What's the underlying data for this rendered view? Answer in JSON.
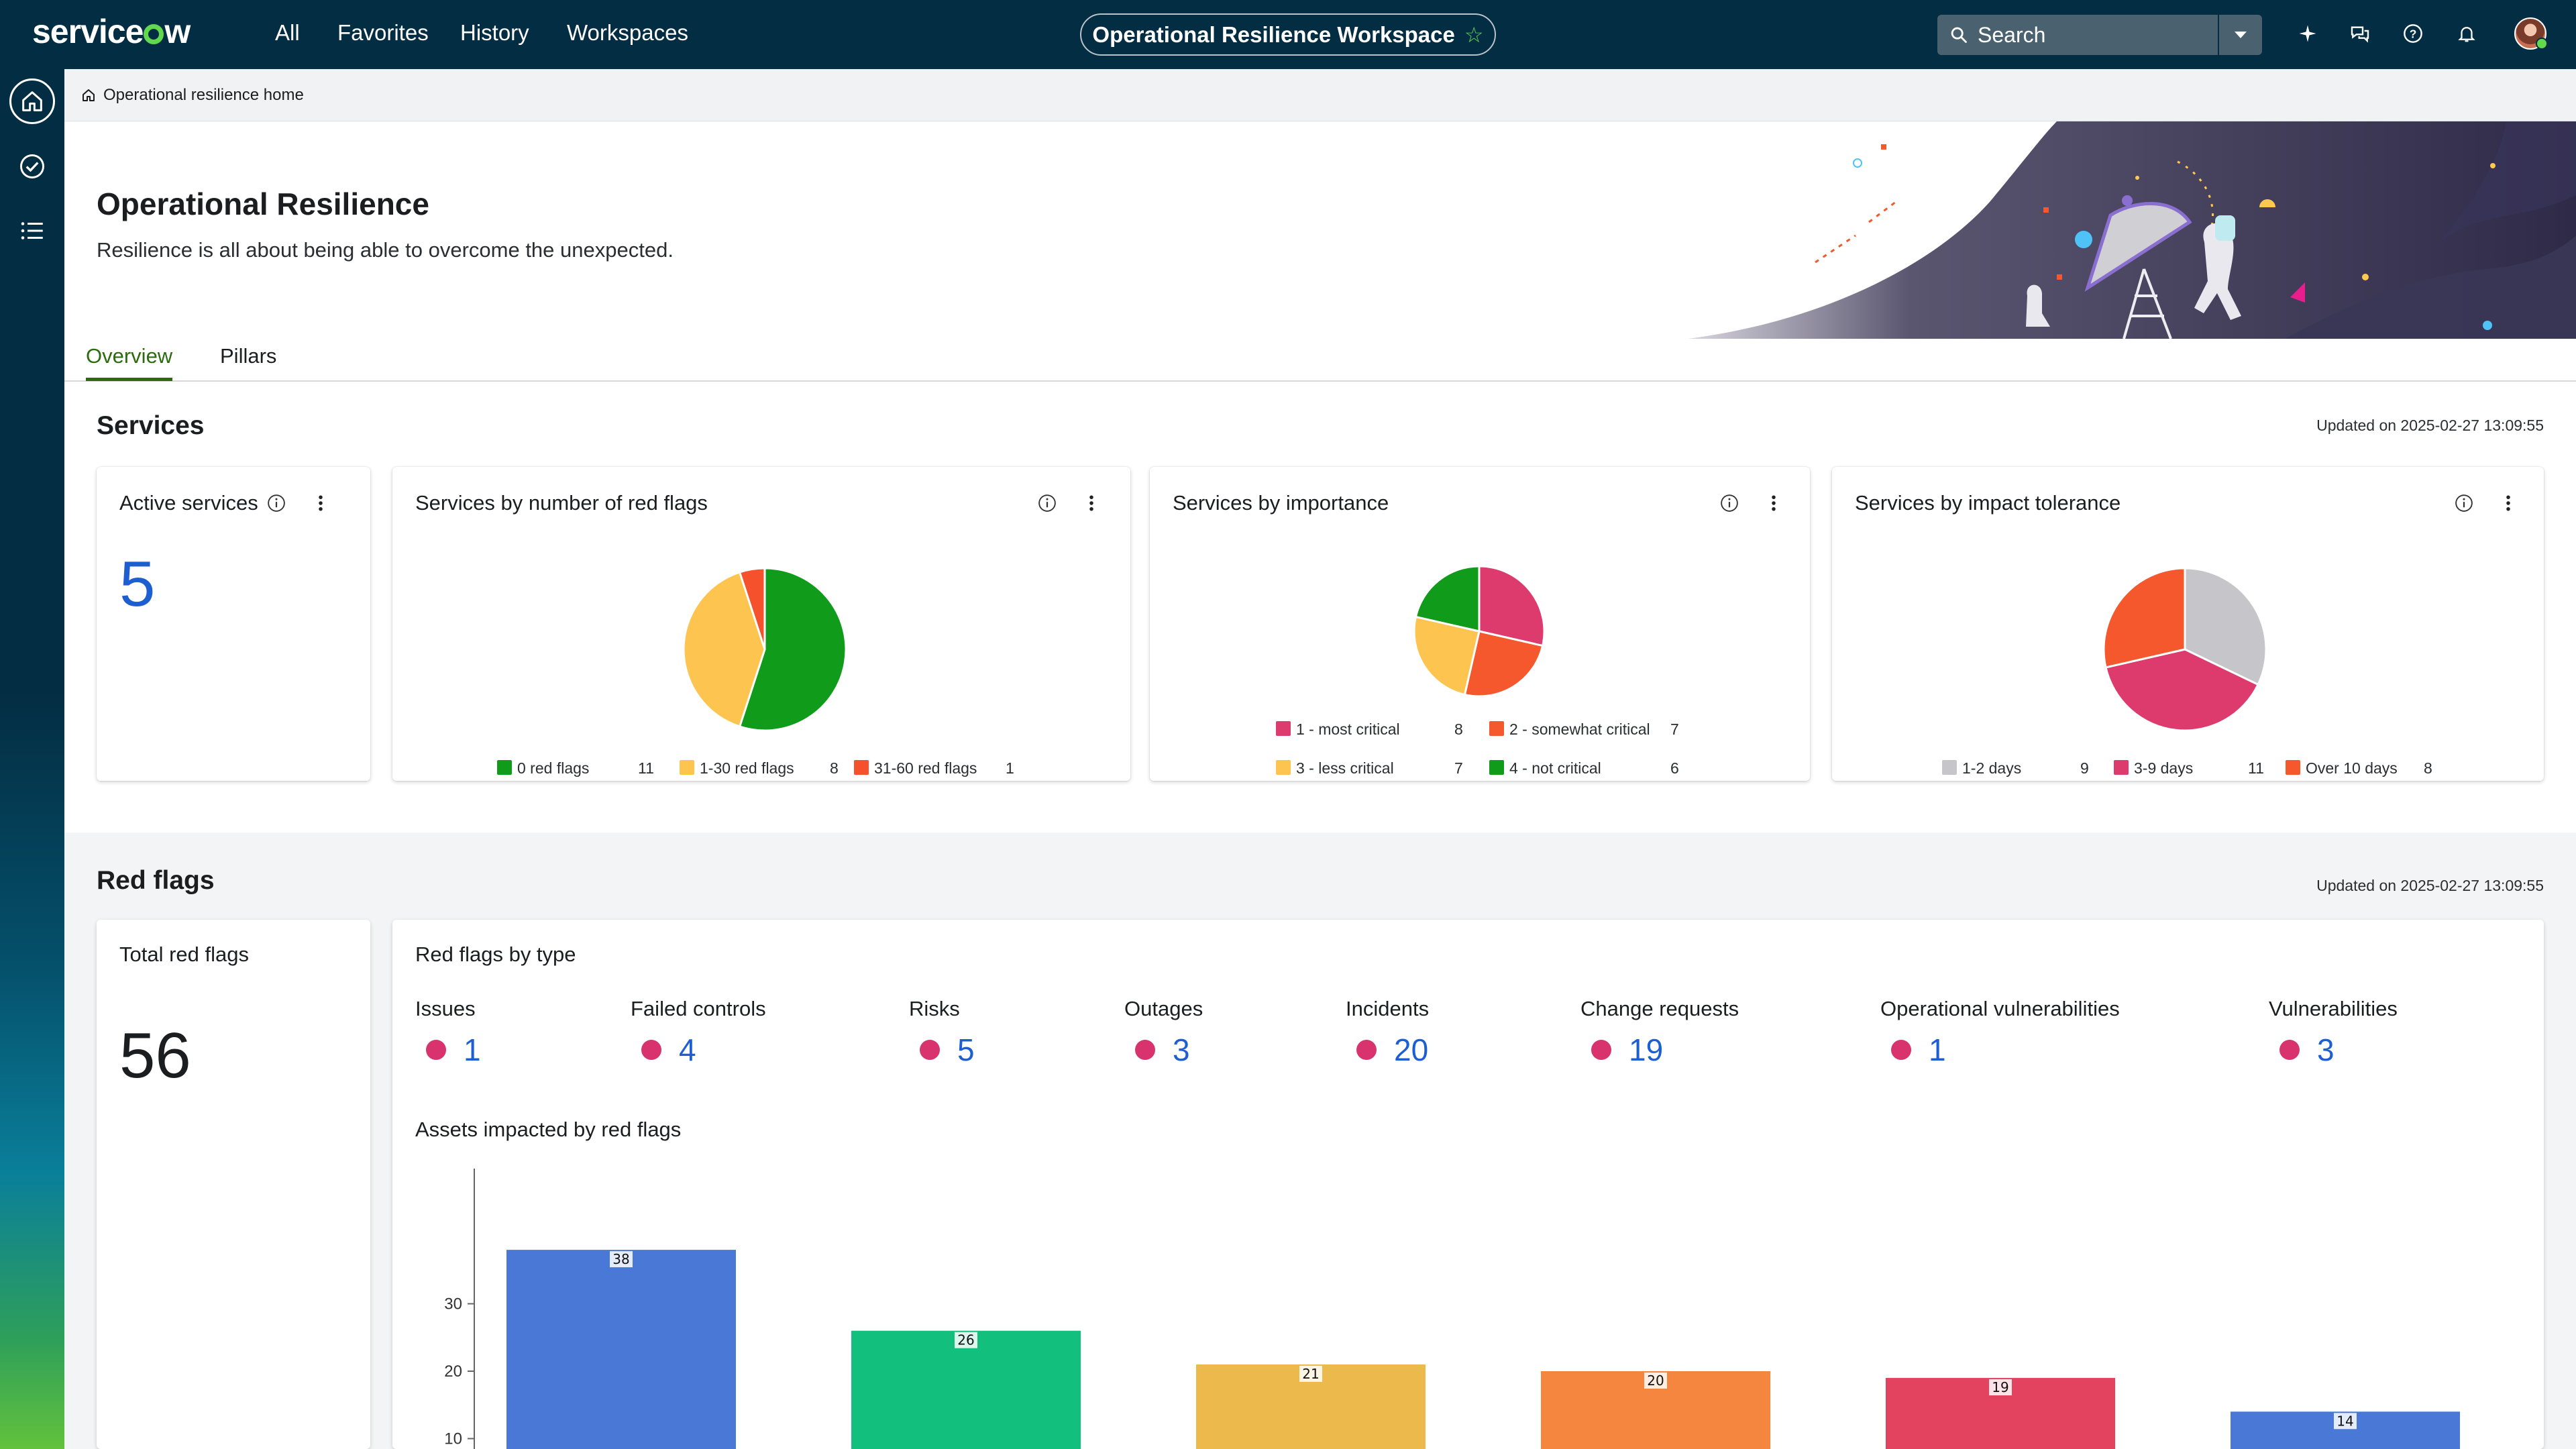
{
  "topbar": {
    "brand": "servicenow",
    "nav": [
      "All",
      "Favorites",
      "History",
      "Workspaces"
    ],
    "workspace_title": "Operational Resilience Workspace",
    "search_label": "Search"
  },
  "breadcrumb": {
    "label": "Operational resilience home"
  },
  "hero": {
    "title": "Operational Resilience",
    "subtitle": "Resilience is all about being able to overcome the unexpected."
  },
  "tabs": [
    {
      "label": "Overview",
      "active": true
    },
    {
      "label": "Pillars",
      "active": false
    }
  ],
  "services": {
    "title": "Services",
    "updated": "Updated on 2025-02-27 13:09:55",
    "active_services": {
      "title": "Active services",
      "value": "5"
    },
    "red_flags_card": {
      "title": "Services by number of red flags"
    },
    "importance_card": {
      "title": "Services by importance"
    },
    "impact_card": {
      "title": "Services by impact tolerance"
    }
  },
  "red_flags": {
    "title": "Red flags",
    "updated": "Updated on 2025-02-27 13:09:55",
    "total": {
      "title": "Total red flags",
      "value": "56"
    },
    "by_type_title": "Red flags by type",
    "types": [
      {
        "name": "Issues",
        "count": "1"
      },
      {
        "name": "Failed controls",
        "count": "4"
      },
      {
        "name": "Risks",
        "count": "5"
      },
      {
        "name": "Outages",
        "count": "3"
      },
      {
        "name": "Incidents",
        "count": "20"
      },
      {
        "name": "Change requests",
        "count": "19"
      },
      {
        "name": "Operational vulnerabilities",
        "count": "1"
      },
      {
        "name": "Vulnerabilities",
        "count": "3"
      }
    ],
    "assets_title": "Assets impacted by red flags"
  },
  "colors": {
    "accent_green": "#62d84e",
    "topbar": "#032d42",
    "link_blue": "#1d5fd0",
    "flag_dot": "#d8336d"
  },
  "chart_data": [
    {
      "type": "pie",
      "title": "Services by number of red flags",
      "categories": [
        "0 red flags",
        "1-30 red flags",
        "31-60 red flags"
      ],
      "values": [
        11,
        8,
        1
      ],
      "colors": [
        "#109b1b",
        "#fdc54f",
        "#f4512c"
      ]
    },
    {
      "type": "pie",
      "title": "Services by importance",
      "categories": [
        "1 - most critical",
        "2 - somewhat critical",
        "3 - less critical",
        "4 - not critical"
      ],
      "values": [
        8,
        7,
        7,
        6
      ],
      "colors": [
        "#dd3a6d",
        "#f4582c",
        "#fdc54f",
        "#109b1b"
      ]
    },
    {
      "type": "pie",
      "title": "Services by impact tolerance",
      "categories": [
        "1-2 days",
        "3-9 days",
        "Over 10 days"
      ],
      "values": [
        9,
        11,
        8
      ],
      "colors": [
        "#c5c5ca",
        "#dd3a6d",
        "#f4582c"
      ]
    },
    {
      "type": "bar",
      "title": "Assets impacted by red flags",
      "values": [
        38,
        26,
        21,
        20,
        19,
        14
      ],
      "colors": [
        "#4a78d6",
        "#13bf7d",
        "#ecb94c",
        "#f5863f",
        "#e4435f",
        "#4a78d6"
      ],
      "yticks": [
        10,
        20,
        30
      ],
      "ylim": [
        0,
        40
      ]
    }
  ]
}
